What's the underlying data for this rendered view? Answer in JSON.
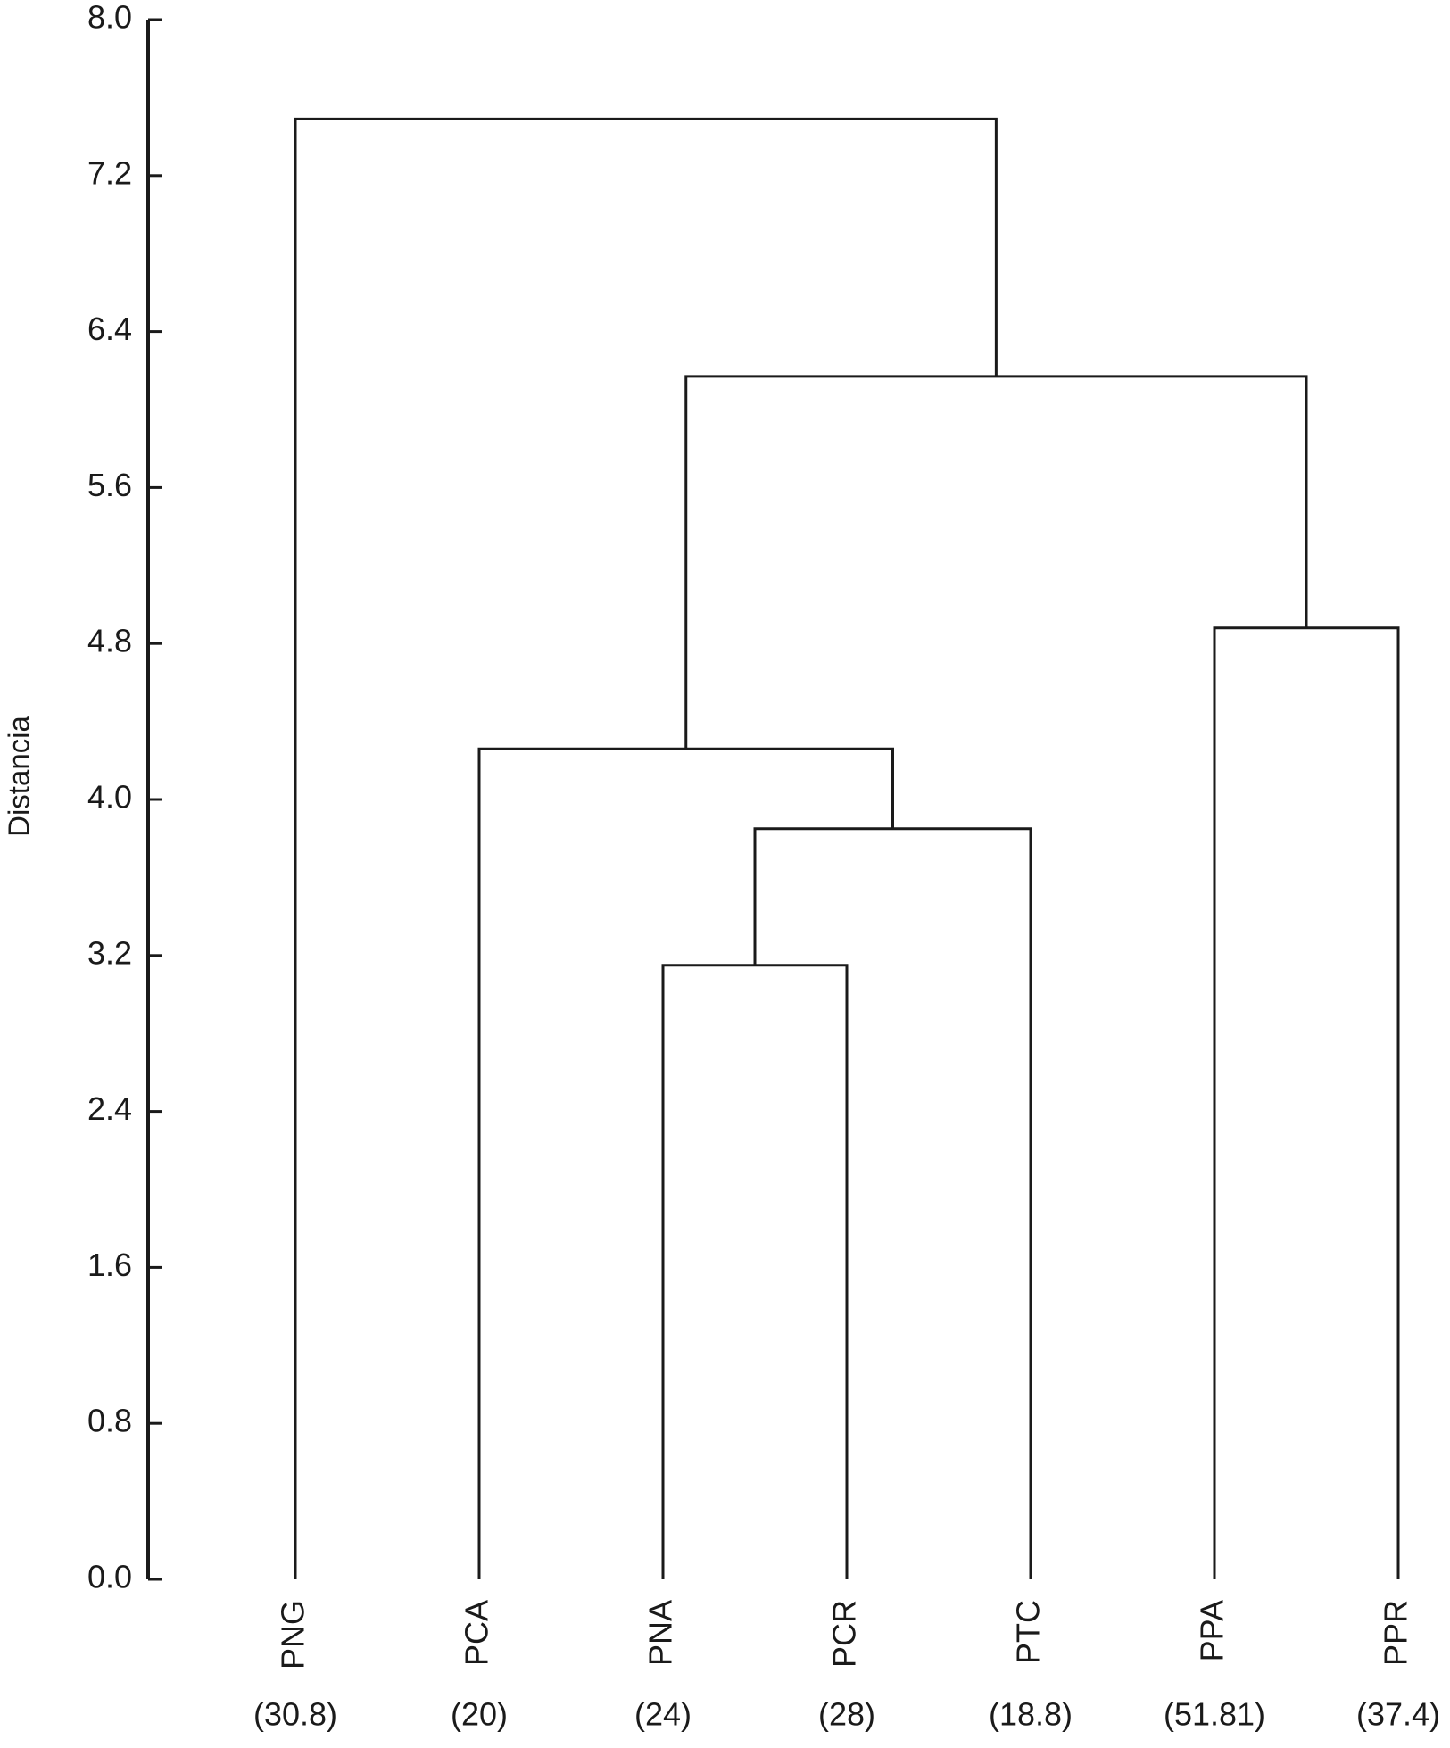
{
  "chart_data": {
    "type": "dendrogram",
    "y_label": "Distancia",
    "leaves": [
      "PNG",
      "PCA",
      "PNA",
      "PCR",
      "PTC",
      "PPA",
      "PPR"
    ],
    "leaf_notes": [
      "(30.8)",
      "(20)",
      "(24)",
      "(28)",
      "(18.8)",
      "(51.81)",
      "(37.4)"
    ],
    "linkage": [
      [
        2,
        3,
        3.15
      ],
      [
        7,
        4,
        3.85
      ],
      [
        1,
        8,
        4.26
      ],
      [
        5,
        6,
        4.88
      ],
      [
        9,
        10,
        6.17
      ],
      [
        0,
        11,
        7.49
      ]
    ],
    "ylim": [
      0,
      8
    ],
    "yticks": [
      {
        "value": 0,
        "label": "0.0"
      },
      0.8,
      1.6,
      2.4,
      3.2,
      {
        "value": 4,
        "label": "4.0"
      },
      4.8,
      5.6,
      6.4,
      7.2,
      {
        "value": 8,
        "label": "8.0"
      }
    ],
    "color": "#1a1a1a"
  }
}
